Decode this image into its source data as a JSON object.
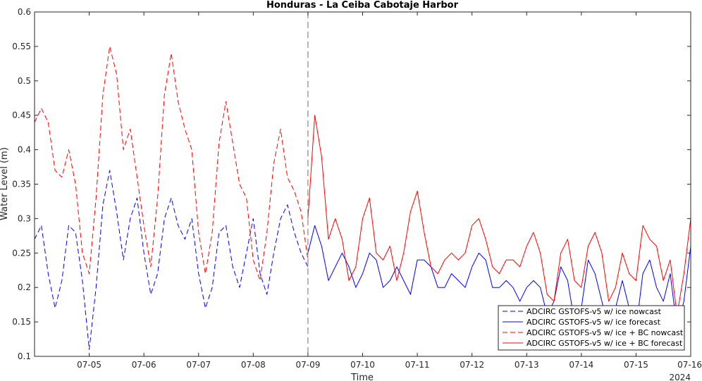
{
  "chart_data": {
    "type": "line",
    "title": "Honduras - La Ceiba Cabotaje Harbor",
    "xlabel": "Time",
    "ylabel": "Water Level (m)",
    "year_label": "2024",
    "ylim": [
      0.1,
      0.6
    ],
    "xlim": [
      "2024-07-04 00:00",
      "2024-07-16 00:00"
    ],
    "yticks": [
      "0.1",
      "0.15",
      "0.2",
      "0.25",
      "0.3",
      "0.35",
      "0.4",
      "0.45",
      "0.5",
      "0.55",
      "0.6"
    ],
    "xticks": [
      "07-05",
      "07-06",
      "07-07",
      "07-08",
      "07-09",
      "07-10",
      "07-11",
      "07-12",
      "07-13",
      "07-14",
      "07-15",
      "07-16"
    ],
    "nowcast_forecast_boundary": "2024-07-09 00:00",
    "grid": false,
    "legend_position": "bottom-right",
    "series": [
      {
        "name": "ADCIRC GSTOFS-v5 w/ ice nowcast",
        "color": "#0000ff",
        "dashed": true,
        "x": [
          "2024-07-04 00:00",
          "2024-07-04 03:00",
          "2024-07-04 06:00",
          "2024-07-04 09:00",
          "2024-07-04 12:00",
          "2024-07-04 15:00",
          "2024-07-04 18:00",
          "2024-07-04 21:00",
          "2024-07-05 00:00",
          "2024-07-05 03:00",
          "2024-07-05 06:00",
          "2024-07-05 09:00",
          "2024-07-05 12:00",
          "2024-07-05 15:00",
          "2024-07-05 18:00",
          "2024-07-05 21:00",
          "2024-07-06 00:00",
          "2024-07-06 03:00",
          "2024-07-06 06:00",
          "2024-07-06 09:00",
          "2024-07-06 12:00",
          "2024-07-06 15:00",
          "2024-07-06 18:00",
          "2024-07-06 21:00",
          "2024-07-07 00:00",
          "2024-07-07 03:00",
          "2024-07-07 06:00",
          "2024-07-07 09:00",
          "2024-07-07 12:00",
          "2024-07-07 15:00",
          "2024-07-07 18:00",
          "2024-07-07 21:00",
          "2024-07-08 00:00",
          "2024-07-08 03:00",
          "2024-07-08 06:00",
          "2024-07-08 09:00",
          "2024-07-08 12:00",
          "2024-07-08 15:00",
          "2024-07-08 18:00",
          "2024-07-08 21:00",
          "2024-07-09 00:00"
        ],
        "y": [
          0.27,
          0.29,
          0.22,
          0.17,
          0.21,
          0.29,
          0.28,
          0.21,
          0.11,
          0.2,
          0.32,
          0.37,
          0.31,
          0.24,
          0.3,
          0.33,
          0.25,
          0.19,
          0.22,
          0.3,
          0.33,
          0.29,
          0.27,
          0.3,
          0.22,
          0.17,
          0.2,
          0.28,
          0.29,
          0.23,
          0.2,
          0.25,
          0.3,
          0.22,
          0.19,
          0.25,
          0.3,
          0.32,
          0.28,
          0.25,
          0.23
        ]
      },
      {
        "name": "ADCIRC GSTOFS-v5 w/ ice forecast",
        "color": "#0000ff",
        "dashed": false,
        "x": [
          "2024-07-09 00:00",
          "2024-07-09 03:00",
          "2024-07-09 06:00",
          "2024-07-09 09:00",
          "2024-07-09 12:00",
          "2024-07-09 15:00",
          "2024-07-09 18:00",
          "2024-07-09 21:00",
          "2024-07-10 00:00",
          "2024-07-10 03:00",
          "2024-07-10 06:00",
          "2024-07-10 09:00",
          "2024-07-10 12:00",
          "2024-07-10 15:00",
          "2024-07-10 18:00",
          "2024-07-10 21:00",
          "2024-07-11 00:00",
          "2024-07-11 03:00",
          "2024-07-11 06:00",
          "2024-07-11 09:00",
          "2024-07-11 12:00",
          "2024-07-11 15:00",
          "2024-07-11 18:00",
          "2024-07-11 21:00",
          "2024-07-12 00:00",
          "2024-07-12 03:00",
          "2024-07-12 06:00",
          "2024-07-12 09:00",
          "2024-07-12 12:00",
          "2024-07-12 15:00",
          "2024-07-12 18:00",
          "2024-07-12 21:00",
          "2024-07-13 00:00",
          "2024-07-13 03:00",
          "2024-07-13 06:00",
          "2024-07-13 09:00",
          "2024-07-13 12:00",
          "2024-07-13 15:00",
          "2024-07-13 18:00",
          "2024-07-13 21:00",
          "2024-07-14 00:00",
          "2024-07-14 03:00",
          "2024-07-14 06:00",
          "2024-07-14 09:00",
          "2024-07-14 12:00",
          "2024-07-14 15:00",
          "2024-07-14 18:00",
          "2024-07-14 21:00",
          "2024-07-15 00:00",
          "2024-07-15 03:00",
          "2024-07-15 06:00",
          "2024-07-15 09:00",
          "2024-07-15 12:00",
          "2024-07-15 15:00",
          "2024-07-15 18:00",
          "2024-07-15 21:00",
          "2024-07-16 00:00"
        ],
        "y": [
          0.25,
          0.29,
          0.26,
          0.21,
          0.23,
          0.25,
          0.23,
          0.2,
          0.22,
          0.25,
          0.24,
          0.2,
          0.21,
          0.23,
          0.21,
          0.19,
          0.24,
          0.24,
          0.23,
          0.2,
          0.2,
          0.22,
          0.21,
          0.2,
          0.23,
          0.25,
          0.24,
          0.2,
          0.2,
          0.21,
          0.2,
          0.18,
          0.2,
          0.21,
          0.2,
          0.16,
          0.18,
          0.23,
          0.21,
          0.15,
          0.17,
          0.24,
          0.22,
          0.18,
          0.14,
          0.17,
          0.21,
          0.17,
          0.14,
          0.22,
          0.24,
          0.2,
          0.18,
          0.22,
          0.14,
          0.18,
          0.26
        ]
      },
      {
        "name": "ADCIRC GSTOFS-v5 w/ ice + BC nowcast",
        "color": "#ff0000",
        "dashed": true,
        "x": [
          "2024-07-04 00:00",
          "2024-07-04 03:00",
          "2024-07-04 06:00",
          "2024-07-04 09:00",
          "2024-07-04 12:00",
          "2024-07-04 15:00",
          "2024-07-04 18:00",
          "2024-07-04 21:00",
          "2024-07-05 00:00",
          "2024-07-05 03:00",
          "2024-07-05 06:00",
          "2024-07-05 09:00",
          "2024-07-05 12:00",
          "2024-07-05 15:00",
          "2024-07-05 18:00",
          "2024-07-05 21:00",
          "2024-07-06 00:00",
          "2024-07-06 03:00",
          "2024-07-06 06:00",
          "2024-07-06 09:00",
          "2024-07-06 12:00",
          "2024-07-06 15:00",
          "2024-07-06 18:00",
          "2024-07-06 21:00",
          "2024-07-07 00:00",
          "2024-07-07 03:00",
          "2024-07-07 06:00",
          "2024-07-07 09:00",
          "2024-07-07 12:00",
          "2024-07-07 15:00",
          "2024-07-07 18:00",
          "2024-07-07 21:00",
          "2024-07-08 00:00",
          "2024-07-08 03:00",
          "2024-07-08 06:00",
          "2024-07-08 09:00",
          "2024-07-08 12:00",
          "2024-07-08 15:00",
          "2024-07-08 18:00",
          "2024-07-08 21:00",
          "2024-07-09 00:00"
        ],
        "y": [
          0.44,
          0.46,
          0.44,
          0.37,
          0.36,
          0.4,
          0.35,
          0.25,
          0.22,
          0.33,
          0.48,
          0.55,
          0.51,
          0.4,
          0.43,
          0.36,
          0.29,
          0.23,
          0.33,
          0.48,
          0.54,
          0.47,
          0.43,
          0.4,
          0.28,
          0.22,
          0.28,
          0.41,
          0.47,
          0.41,
          0.35,
          0.33,
          0.24,
          0.21,
          0.28,
          0.38,
          0.43,
          0.36,
          0.34,
          0.31,
          0.24
        ]
      },
      {
        "name": "ADCIRC GSTOFS-v5 w/ ice + BC forecast",
        "color": "#ff0000",
        "dashed": false,
        "x": [
          "2024-07-09 00:00",
          "2024-07-09 03:00",
          "2024-07-09 06:00",
          "2024-07-09 09:00",
          "2024-07-09 12:00",
          "2024-07-09 15:00",
          "2024-07-09 18:00",
          "2024-07-09 21:00",
          "2024-07-10 00:00",
          "2024-07-10 03:00",
          "2024-07-10 06:00",
          "2024-07-10 09:00",
          "2024-07-10 12:00",
          "2024-07-10 15:00",
          "2024-07-10 18:00",
          "2024-07-10 21:00",
          "2024-07-11 00:00",
          "2024-07-11 03:00",
          "2024-07-11 06:00",
          "2024-07-11 09:00",
          "2024-07-11 12:00",
          "2024-07-11 15:00",
          "2024-07-11 18:00",
          "2024-07-11 21:00",
          "2024-07-12 00:00",
          "2024-07-12 03:00",
          "2024-07-12 06:00",
          "2024-07-12 09:00",
          "2024-07-12 12:00",
          "2024-07-12 15:00",
          "2024-07-12 18:00",
          "2024-07-12 21:00",
          "2024-07-13 00:00",
          "2024-07-13 03:00",
          "2024-07-13 06:00",
          "2024-07-13 09:00",
          "2024-07-13 12:00",
          "2024-07-13 15:00",
          "2024-07-13 18:00",
          "2024-07-13 21:00",
          "2024-07-14 00:00",
          "2024-07-14 03:00",
          "2024-07-14 06:00",
          "2024-07-14 09:00",
          "2024-07-14 12:00",
          "2024-07-14 15:00",
          "2024-07-14 18:00",
          "2024-07-14 21:00",
          "2024-07-15 00:00",
          "2024-07-15 03:00",
          "2024-07-15 06:00",
          "2024-07-15 09:00",
          "2024-07-15 12:00",
          "2024-07-15 15:00",
          "2024-07-15 18:00",
          "2024-07-15 21:00",
          "2024-07-16 00:00"
        ],
        "y": [
          0.3,
          0.45,
          0.39,
          0.27,
          0.3,
          0.27,
          0.21,
          0.23,
          0.3,
          0.33,
          0.25,
          0.24,
          0.26,
          0.21,
          0.25,
          0.31,
          0.34,
          0.28,
          0.23,
          0.22,
          0.24,
          0.25,
          0.24,
          0.25,
          0.29,
          0.3,
          0.27,
          0.23,
          0.22,
          0.24,
          0.24,
          0.23,
          0.26,
          0.28,
          0.25,
          0.19,
          0.18,
          0.25,
          0.27,
          0.21,
          0.2,
          0.26,
          0.28,
          0.25,
          0.18,
          0.2,
          0.25,
          0.22,
          0.21,
          0.29,
          0.27,
          0.26,
          0.21,
          0.24,
          0.16,
          0.22,
          0.3
        ]
      }
    ]
  }
}
